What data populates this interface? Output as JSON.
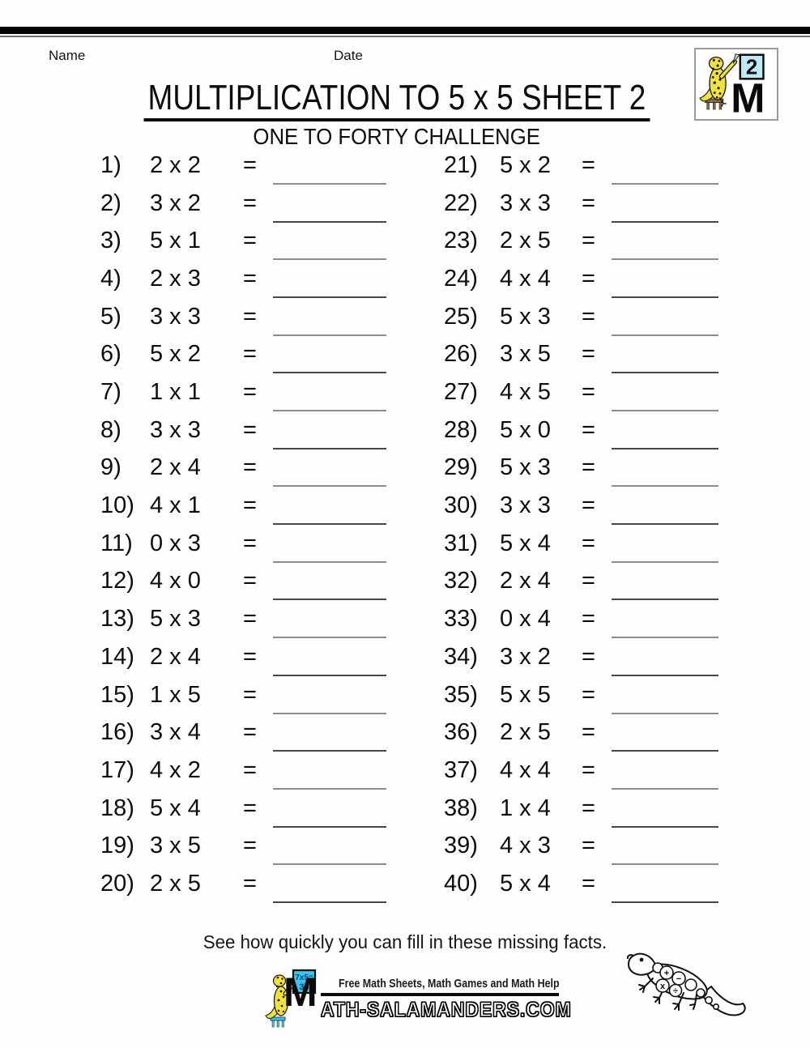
{
  "page": {
    "name_label": "Name",
    "date_label": "Date",
    "title": "MULTIPLICATION TO 5 x 5 SHEET 2",
    "subtitle": "ONE TO FORTY CHALLENGE",
    "footer_message": "See how quickly you can fill in these missing facts."
  },
  "equals": "=",
  "problems": [
    {
      "num": "1)",
      "expr": "2 x 2"
    },
    {
      "num": "2)",
      "expr": "3 x 2"
    },
    {
      "num": "3)",
      "expr": "5 x 1"
    },
    {
      "num": "4)",
      "expr": "2 x 3"
    },
    {
      "num": "5)",
      "expr": "3 x 3"
    },
    {
      "num": "6)",
      "expr": "5 x 2"
    },
    {
      "num": "7)",
      "expr": "1 x 1"
    },
    {
      "num": "8)",
      "expr": "3 x 3"
    },
    {
      "num": "9)",
      "expr": "2 x 4"
    },
    {
      "num": "10)",
      "expr": "4 x 1"
    },
    {
      "num": "11)",
      "expr": "0 x 3"
    },
    {
      "num": "12)",
      "expr": "4 x 0"
    },
    {
      "num": "13)",
      "expr": "5 x 3"
    },
    {
      "num": "14)",
      "expr": "2 x 4"
    },
    {
      "num": "15)",
      "expr": "1 x 5"
    },
    {
      "num": "16)",
      "expr": "3 x 4"
    },
    {
      "num": "17)",
      "expr": "4 x 2"
    },
    {
      "num": "18)",
      "expr": "5 x 4"
    },
    {
      "num": "19)",
      "expr": "3 x 5"
    },
    {
      "num": "20)",
      "expr": "2 x 5"
    },
    {
      "num": "21)",
      "expr": "5 x 2"
    },
    {
      "num": "22)",
      "expr": "3 x 3"
    },
    {
      "num": "23)",
      "expr": "2 x 5"
    },
    {
      "num": "24)",
      "expr": "4 x 4"
    },
    {
      "num": "25)",
      "expr": "5 x 3"
    },
    {
      "num": "26)",
      "expr": "3 x 5"
    },
    {
      "num": "27)",
      "expr": "4 x 5"
    },
    {
      "num": "28)",
      "expr": "5 x 0"
    },
    {
      "num": "29)",
      "expr": "5 x 3"
    },
    {
      "num": "30)",
      "expr": "3 x 3"
    },
    {
      "num": "31)",
      "expr": "5 x 4"
    },
    {
      "num": "32)",
      "expr": "2 x 4"
    },
    {
      "num": "33)",
      "expr": "0 x 4"
    },
    {
      "num": "34)",
      "expr": "3 x 2"
    },
    {
      "num": "35)",
      "expr": "5 x 5"
    },
    {
      "num": "36)",
      "expr": "2 x 5"
    },
    {
      "num": "37)",
      "expr": "4 x 4"
    },
    {
      "num": "38)",
      "expr": "1 x 4"
    },
    {
      "num": "39)",
      "expr": "4 x 3"
    },
    {
      "num": "40)",
      "expr": "5 x 4"
    }
  ],
  "logo_top": {
    "card_number": "2",
    "letter": "M"
  },
  "logo_footer": {
    "card_line1": "7x5=",
    "card_line2": "35",
    "tagline": "Free Math Sheets, Math Games and Math Help",
    "site_prefix": "M",
    "site_text": "ATH-SALAMANDERS.COM"
  },
  "footer_art": {
    "symbols": [
      "+",
      "−",
      "x",
      "÷"
    ]
  },
  "colors": {
    "card_cyan_pale": "#bfeaf3",
    "card_cyan_bright": "#35c8ea",
    "salamander_yellow": "#f0e13c",
    "answer_line_gray": "#8d8d8d"
  }
}
